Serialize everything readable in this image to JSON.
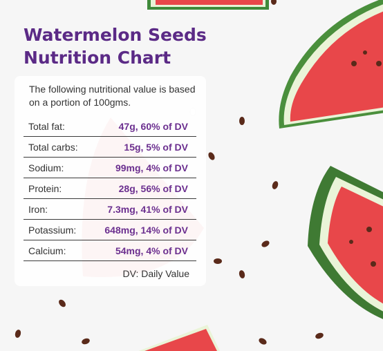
{
  "title": {
    "line1": "Watermelon Seeds",
    "line2": "Nutrition Chart"
  },
  "intro": "The following nutritional value is based on a portion of 100gms.",
  "nutrients": [
    {
      "label": "Total fat:",
      "value": "47g, 60% of DV"
    },
    {
      "label": "Total carbs:",
      "value": "15g, 5% of DV"
    },
    {
      "label": "Sodium:",
      "value": "99mg, 4% of DV"
    },
    {
      "label": "Protein:",
      "value": "28g, 56% of DV"
    },
    {
      "label": "Iron:",
      "value": "7.3mg, 41% of DV"
    },
    {
      "label": "Potassium:",
      "value": "648mg, 14% of DV"
    },
    {
      "label": "Calcium:",
      "value": "54mg, 4% of DV"
    }
  ],
  "footnote": "DV: Daily Value",
  "colors": {
    "title": "#5b2a86",
    "value": "#6b2f8f",
    "watermelon_flesh": "#e8474a",
    "watermelon_rind": "#3f8a3a",
    "seed": "#5a2a1a"
  }
}
